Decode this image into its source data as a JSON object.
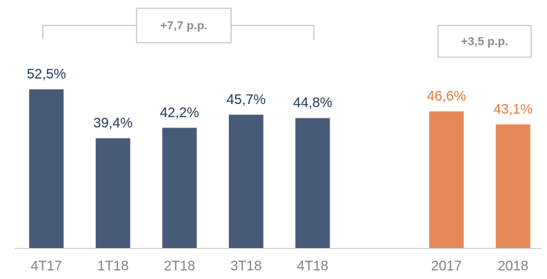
{
  "chart_data": {
    "type": "bar",
    "groups": [
      {
        "categories": [
          "4T17",
          "1T18",
          "2T18",
          "3T18",
          "4T18"
        ],
        "values": [
          52.5,
          39.4,
          42.2,
          45.7,
          44.8
        ],
        "value_labels": [
          "52,5%",
          "39,4%",
          "42,2%",
          "45,7%",
          "44,8%"
        ],
        "color": "#475b78",
        "label_color": "#1f3556"
      },
      {
        "categories": [
          "2017",
          "2018"
        ],
        "values": [
          46.6,
          43.1
        ],
        "value_labels": [
          "46,6%",
          "43,1%"
        ],
        "color": "#e58a57",
        "label_color": "#e0783e"
      }
    ],
    "annotations": [
      "+7,7 p.p.",
      "+3,5 p.p."
    ],
    "ylim": [
      10,
      60
    ]
  }
}
